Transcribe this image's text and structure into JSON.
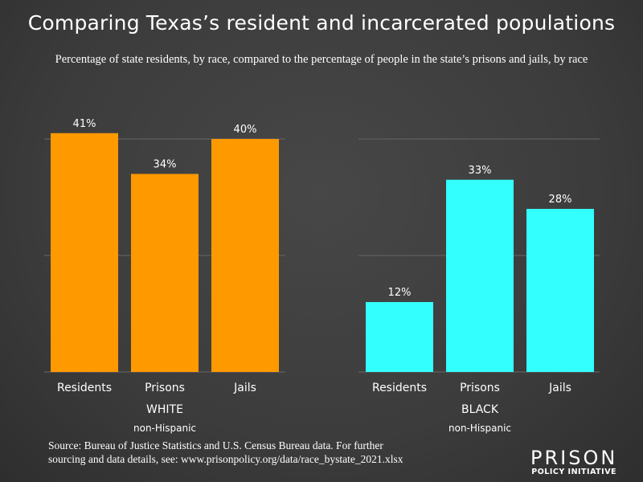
{
  "title": "Comparing Texas’s resident and incarcerated populations",
  "subtitle": "Percentage of state residents, by race, compared to the percentage of people in the state’s prisons and jails, by race",
  "source": [
    "Source: Bureau of Justice Statistics and U.S. Census Bureau data. For further",
    "sourcing and data details, see: www.prisonpolicy.org/data/race_bystate_2021.xlsx"
  ],
  "logo": {
    "line1": "PRISON",
    "line2": "POLICY INITIATIVE"
  },
  "chart_data": [
    {
      "type": "bar",
      "group": "WHITE",
      "group_sub": "non-Hispanic",
      "categories": [
        "Residents",
        "Prisons",
        "Jails"
      ],
      "values": [
        41,
        34,
        40
      ],
      "labels": [
        "41%",
        "34%",
        "40%"
      ],
      "color": "#ff9900",
      "ylim": [
        0,
        45
      ],
      "grid": true
    },
    {
      "type": "bar",
      "group": "BLACK",
      "group_sub": "non-Hispanic",
      "categories": [
        "Residents",
        "Prisons",
        "Jails"
      ],
      "values": [
        12,
        33,
        28
      ],
      "labels": [
        "12%",
        "33%",
        "28%"
      ],
      "color": "#33ffff",
      "ylim": [
        0,
        45
      ],
      "grid": true
    }
  ]
}
